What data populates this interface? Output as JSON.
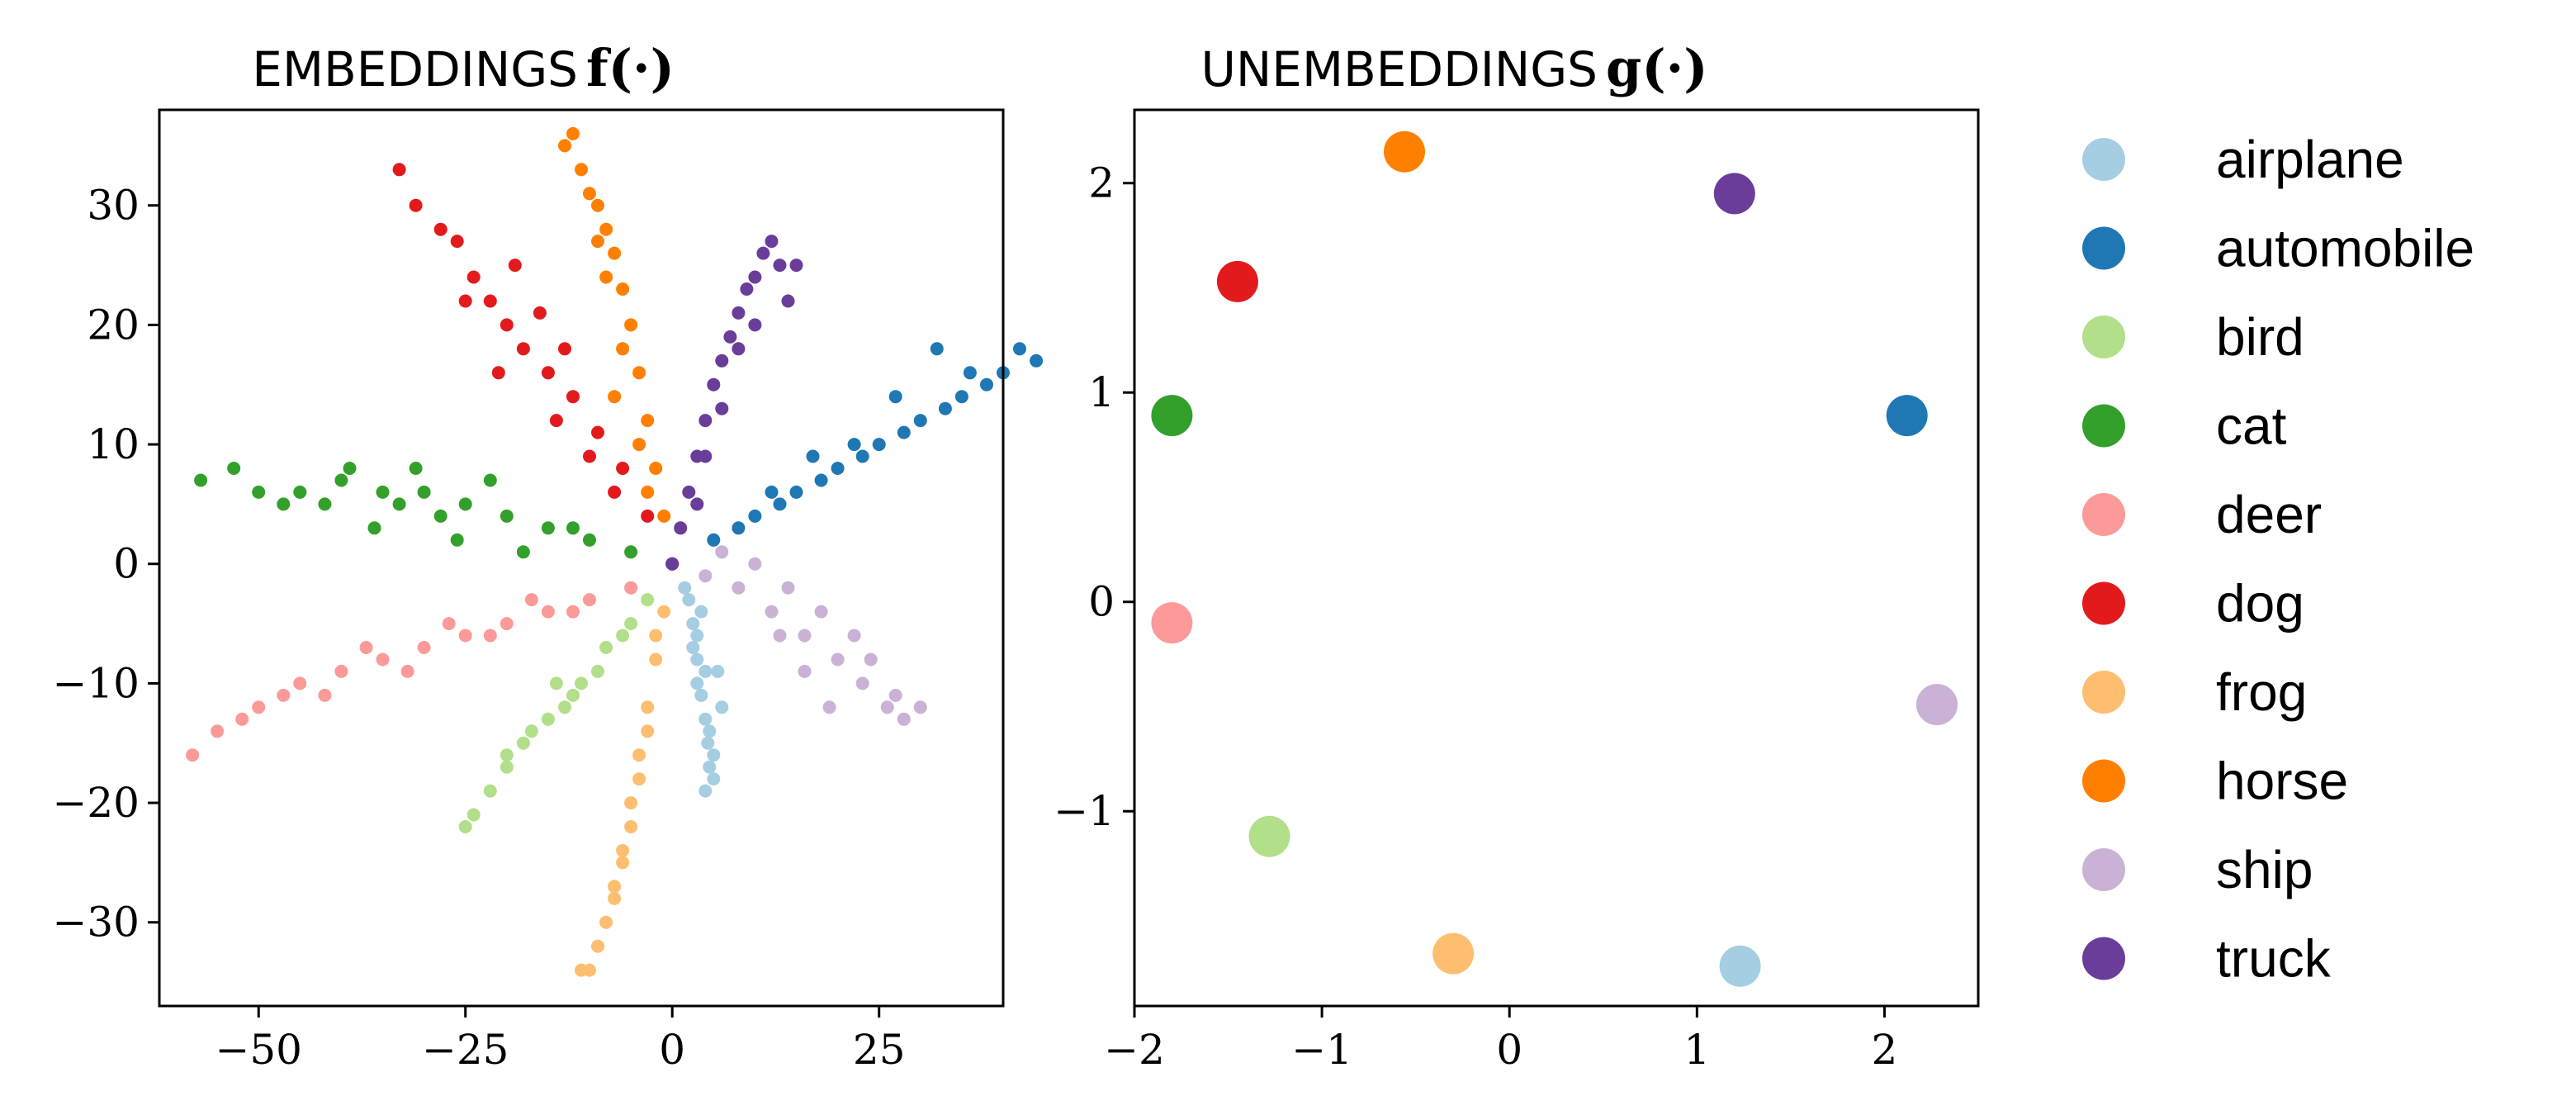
{
  "chart_data": [
    {
      "type": "scatter",
      "title": "EMBEDDINGS",
      "title_math": "f(·)",
      "xlabel": "",
      "ylabel": "",
      "xlim": [
        -62,
        40
      ],
      "ylim": [
        -37,
        38
      ],
      "xticks": [
        -50,
        -25,
        0,
        25
      ],
      "xtick_labels": [
        "−50",
        "−25",
        "0",
        "25"
      ],
      "yticks": [
        30,
        20,
        10,
        0,
        -10,
        -20,
        -30
      ],
      "ytick_labels": [
        "30",
        "20",
        "10",
        "0",
        "−10",
        "−20",
        "−30"
      ],
      "grid": false,
      "series": [
        {
          "name": "airplane",
          "color": "#a6cee3",
          "points": [
            [
              0,
              0
            ],
            [
              1.5,
              -2
            ],
            [
              2.5,
              -5
            ],
            [
              3,
              -8
            ],
            [
              3.5,
              -11
            ],
            [
              4,
              -13
            ],
            [
              4.3,
              -15
            ],
            [
              4.5,
              -17
            ],
            [
              5,
              -18
            ],
            [
              4,
              -19
            ],
            [
              3,
              -6
            ],
            [
              2,
              -3
            ],
            [
              5.5,
              -9
            ],
            [
              6,
              -12
            ],
            [
              3,
              -10
            ],
            [
              4.5,
              -14
            ],
            [
              2.5,
              -7
            ],
            [
              5,
              -16
            ],
            [
              3.5,
              -4
            ],
            [
              4,
              -9
            ]
          ]
        },
        {
          "name": "automobile",
          "color": "#1f78b4",
          "points": [
            [
              0,
              0
            ],
            [
              5,
              2
            ],
            [
              10,
              4
            ],
            [
              15,
              6
            ],
            [
              20,
              8
            ],
            [
              25,
              10
            ],
            [
              30,
              12
            ],
            [
              35,
              14
            ],
            [
              40,
              16
            ],
            [
              44,
              17
            ],
            [
              42,
              18
            ],
            [
              38,
              15
            ],
            [
              33,
              13
            ],
            [
              28,
              11
            ],
            [
              23,
              9
            ],
            [
              18,
              7
            ],
            [
              13,
              5
            ],
            [
              8,
              3
            ],
            [
              32,
              18
            ],
            [
              22,
              10
            ],
            [
              27,
              14
            ],
            [
              12,
              6
            ],
            [
              36,
              16
            ],
            [
              17,
              9
            ]
          ]
        },
        {
          "name": "bird",
          "color": "#b2df8a",
          "points": [
            [
              0,
              0
            ],
            [
              -3,
              -3
            ],
            [
              -6,
              -6
            ],
            [
              -9,
              -9
            ],
            [
              -12,
              -11
            ],
            [
              -15,
              -13
            ],
            [
              -18,
              -15
            ],
            [
              -20,
              -17
            ],
            [
              -22,
              -19
            ],
            [
              -24,
              -21
            ],
            [
              -25,
              -22
            ],
            [
              -14,
              -10
            ],
            [
              -8,
              -7
            ],
            [
              -17,
              -14
            ],
            [
              -11,
              -10
            ],
            [
              -20,
              -16
            ],
            [
              -5,
              -5
            ],
            [
              -13,
              -12
            ]
          ]
        },
        {
          "name": "cat",
          "color": "#33a02c",
          "points": [
            [
              0,
              0
            ],
            [
              -5,
              1
            ],
            [
              -10,
              2
            ],
            [
              -15,
              3
            ],
            [
              -20,
              4
            ],
            [
              -25,
              5
            ],
            [
              -30,
              6
            ],
            [
              -35,
              6
            ],
            [
              -40,
              7
            ],
            [
              -45,
              6
            ],
            [
              -50,
              6
            ],
            [
              -53,
              8
            ],
            [
              -57,
              7
            ],
            [
              -42,
              5
            ],
            [
              -36,
              3
            ],
            [
              -28,
              4
            ],
            [
              -22,
              7
            ],
            [
              -33,
              5
            ],
            [
              -18,
              1
            ],
            [
              -12,
              3
            ],
            [
              -47,
              5
            ],
            [
              -39,
              8
            ],
            [
              -26,
              2
            ],
            [
              -31,
              8
            ]
          ]
        },
        {
          "name": "deer",
          "color": "#fb9a99",
          "points": [
            [
              0,
              0
            ],
            [
              -5,
              -2
            ],
            [
              -10,
              -3
            ],
            [
              -15,
              -4
            ],
            [
              -20,
              -5
            ],
            [
              -25,
              -6
            ],
            [
              -30,
              -7
            ],
            [
              -35,
              -8
            ],
            [
              -40,
              -9
            ],
            [
              -45,
              -10
            ],
            [
              -50,
              -12
            ],
            [
              -55,
              -14
            ],
            [
              -58,
              -16
            ],
            [
              -52,
              -13
            ],
            [
              -42,
              -11
            ],
            [
              -32,
              -9
            ],
            [
              -22,
              -6
            ],
            [
              -12,
              -4
            ],
            [
              -37,
              -7
            ],
            [
              -27,
              -5
            ],
            [
              -47,
              -11
            ],
            [
              -17,
              -3
            ]
          ]
        },
        {
          "name": "dog",
          "color": "#e31a1c",
          "points": [
            [
              0,
              0
            ],
            [
              -3,
              4
            ],
            [
              -6,
              8
            ],
            [
              -9,
              11
            ],
            [
              -12,
              14
            ],
            [
              -15,
              16
            ],
            [
              -18,
              18
            ],
            [
              -20,
              20
            ],
            [
              -22,
              22
            ],
            [
              -24,
              24
            ],
            [
              -26,
              27
            ],
            [
              -28,
              28
            ],
            [
              -31,
              30
            ],
            [
              -33,
              33
            ],
            [
              -16,
              21
            ],
            [
              -10,
              9
            ],
            [
              -21,
              16
            ],
            [
              -13,
              18
            ],
            [
              -25,
              22
            ],
            [
              -7,
              6
            ],
            [
              -19,
              25
            ],
            [
              -14,
              12
            ]
          ]
        },
        {
          "name": "frog",
          "color": "#fdbf6f",
          "points": [
            [
              0,
              0
            ],
            [
              -1,
              -4
            ],
            [
              -2,
              -8
            ],
            [
              -3,
              -12
            ],
            [
              -4,
              -16
            ],
            [
              -5,
              -20
            ],
            [
              -6,
              -24
            ],
            [
              -7,
              -27
            ],
            [
              -8,
              -30
            ],
            [
              -9,
              -32
            ],
            [
              -10,
              -34
            ],
            [
              -11,
              -34
            ],
            [
              -5,
              -22
            ],
            [
              -3,
              -14
            ],
            [
              -7,
              -28
            ],
            [
              -4,
              -18
            ],
            [
              -6,
              -25
            ],
            [
              -2,
              -6
            ]
          ]
        },
        {
          "name": "horse",
          "color": "#ff7f00",
          "points": [
            [
              0,
              0
            ],
            [
              -1,
              4
            ],
            [
              -2,
              8
            ],
            [
              -3,
              12
            ],
            [
              -4,
              16
            ],
            [
              -5,
              20
            ],
            [
              -6,
              23
            ],
            [
              -7,
              26
            ],
            [
              -8,
              28
            ],
            [
              -9,
              30
            ],
            [
              -10,
              31
            ],
            [
              -11,
              33
            ],
            [
              -12,
              36
            ],
            [
              -13,
              35
            ],
            [
              -6,
              18
            ],
            [
              -4,
              10
            ],
            [
              -8,
              24
            ],
            [
              -3,
              6
            ],
            [
              -7,
              14
            ],
            [
              -9,
              27
            ]
          ]
        },
        {
          "name": "ship",
          "color": "#cab2d6",
          "points": [
            [
              0,
              0
            ],
            [
              4,
              -1
            ],
            [
              8,
              -2
            ],
            [
              12,
              -4
            ],
            [
              16,
              -6
            ],
            [
              20,
              -8
            ],
            [
              23,
              -10
            ],
            [
              26,
              -12
            ],
            [
              28,
              -13
            ],
            [
              30,
              -12
            ],
            [
              27,
              -11
            ],
            [
              18,
              -4
            ],
            [
              14,
              -2
            ],
            [
              22,
              -6
            ],
            [
              10,
              0
            ],
            [
              16,
              -9
            ],
            [
              6,
              1
            ],
            [
              24,
              -8
            ],
            [
              19,
              -12
            ],
            [
              13,
              -6
            ]
          ]
        },
        {
          "name": "truck",
          "color": "#6a3d9a",
          "points": [
            [
              0,
              0
            ],
            [
              1,
              3
            ],
            [
              2,
              6
            ],
            [
              3,
              9
            ],
            [
              4,
              12
            ],
            [
              5,
              15
            ],
            [
              6,
              17
            ],
            [
              7,
              19
            ],
            [
              8,
              21
            ],
            [
              9,
              23
            ],
            [
              10,
              24
            ],
            [
              11,
              26
            ],
            [
              12,
              27
            ],
            [
              13,
              25
            ],
            [
              15,
              25
            ],
            [
              6,
              13
            ],
            [
              8,
              18
            ],
            [
              4,
              9
            ],
            [
              10,
              20
            ],
            [
              3,
              5
            ],
            [
              14,
              22
            ]
          ]
        }
      ]
    },
    {
      "type": "scatter",
      "title": "UNEMBEDDINGS",
      "title_math": "g(·)",
      "xlabel": "",
      "ylabel": "",
      "xlim": [
        -2.0,
        2.5
      ],
      "ylim": [
        -1.93,
        2.35
      ],
      "xticks": [
        -2,
        -1,
        0,
        1,
        2
      ],
      "xtick_labels": [
        "−2",
        "−1",
        "0",
        "1",
        "2"
      ],
      "yticks": [
        2,
        1,
        0,
        -1
      ],
      "ytick_labels": [
        "2",
        "1",
        "0",
        "−1"
      ],
      "grid": false,
      "series": [
        {
          "name": "airplane",
          "color": "#a6cee3",
          "points": [
            [
              1.23,
              -1.74
            ]
          ]
        },
        {
          "name": "automobile",
          "color": "#1f78b4",
          "points": [
            [
              2.12,
              0.89
            ]
          ]
        },
        {
          "name": "bird",
          "color": "#b2df8a",
          "points": [
            [
              -1.28,
              -1.12
            ]
          ]
        },
        {
          "name": "cat",
          "color": "#33a02c",
          "points": [
            [
              -1.8,
              0.89
            ]
          ]
        },
        {
          "name": "deer",
          "color": "#fb9a99",
          "points": [
            [
              -1.8,
              -0.1
            ]
          ]
        },
        {
          "name": "dog",
          "color": "#e31a1c",
          "points": [
            [
              -1.45,
              1.53
            ]
          ]
        },
        {
          "name": "frog",
          "color": "#fdbf6f",
          "points": [
            [
              -0.3,
              -1.68
            ]
          ]
        },
        {
          "name": "horse",
          "color": "#ff7f00",
          "points": [
            [
              -0.56,
              2.15
            ]
          ]
        },
        {
          "name": "ship",
          "color": "#cab2d6",
          "points": [
            [
              2.28,
              -0.49
            ]
          ]
        },
        {
          "name": "truck",
          "color": "#6a3d9a",
          "points": [
            [
              1.2,
              1.95
            ]
          ]
        }
      ]
    }
  ],
  "legend": {
    "placement": "right",
    "entries": [
      {
        "label": "airplane",
        "color": "#a6cee3"
      },
      {
        "label": "automobile",
        "color": "#1f78b4"
      },
      {
        "label": "bird",
        "color": "#b2df8a"
      },
      {
        "label": "cat",
        "color": "#33a02c"
      },
      {
        "label": "deer",
        "color": "#fb9a99"
      },
      {
        "label": "dog",
        "color": "#e31a1c"
      },
      {
        "label": "frog",
        "color": "#fdbf6f"
      },
      {
        "label": "horse",
        "color": "#ff7f00"
      },
      {
        "label": "ship",
        "color": "#cab2d6"
      },
      {
        "label": "truck",
        "color": "#6a3d9a"
      }
    ]
  }
}
